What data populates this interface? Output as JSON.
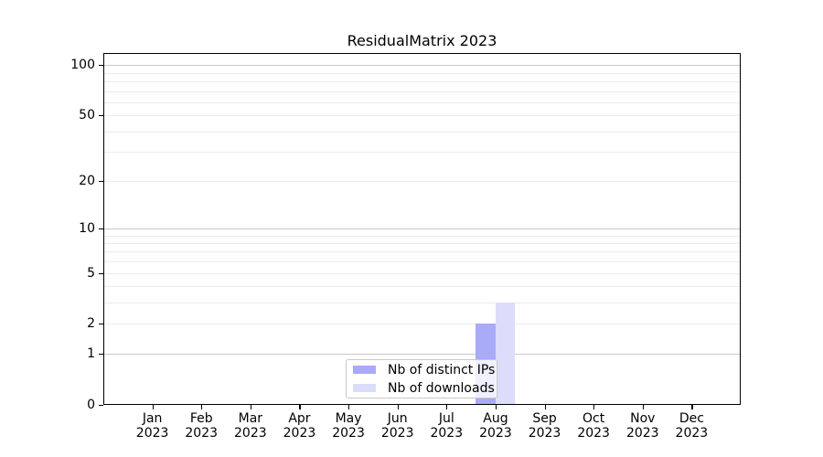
{
  "chart_data": {
    "type": "bar",
    "title": "ResidualMatrix 2023",
    "categories": [
      "Jan 2023",
      "Feb 2023",
      "Mar 2023",
      "Apr 2023",
      "May 2023",
      "Jun 2023",
      "Jul 2023",
      "Aug 2023",
      "Sep 2023",
      "Oct 2023",
      "Nov 2023",
      "Dec 2023"
    ],
    "series": [
      {
        "name": "Nb of distinct IPs",
        "color": "#a9aaf8",
        "values": [
          0,
          0,
          0,
          0,
          0,
          0,
          0,
          2,
          0,
          0,
          0,
          0
        ]
      },
      {
        "name": "Nb of downloads",
        "color": "#dcdcfb",
        "values": [
          0,
          0,
          0,
          0,
          0,
          0,
          0,
          3,
          0,
          0,
          0,
          0
        ]
      }
    ],
    "xlabel": "",
    "ylabel": "",
    "yaxis": {
      "scale": "symlog",
      "ticks": [
        0,
        1,
        2,
        5,
        10,
        20,
        50,
        100
      ],
      "major_gridlines": [
        1,
        10,
        100
      ],
      "minor_gridlines": [
        2,
        3,
        4,
        5,
        6,
        7,
        8,
        9,
        20,
        30,
        40,
        50,
        60,
        70,
        80,
        90
      ],
      "range": [
        0,
        118
      ]
    },
    "grid": "horizontal",
    "legend": {
      "position": "lower center",
      "entries": [
        "Nb of distinct IPs",
        "Nb of downloads"
      ]
    }
  },
  "colors": {
    "background": "#ffffff",
    "spine": "#000000",
    "text": "#000000",
    "major_grid": "#c9c9c9",
    "minor_grid": "#ececec",
    "legend_border": "#c8c8c8"
  }
}
